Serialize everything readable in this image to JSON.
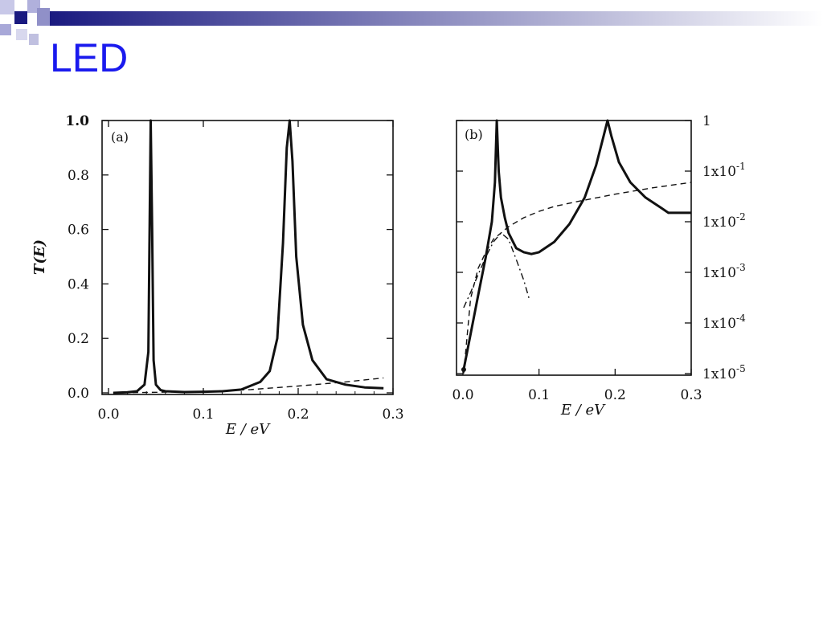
{
  "slide": {
    "title": "LED"
  },
  "chart_data": [
    {
      "type": "line",
      "panel_label": "(a)",
      "xlabel": "E / eV",
      "ylabel": "T(E)",
      "xlim": [
        0,
        0.3
      ],
      "ylim": [
        0,
        1
      ],
      "xticks": [
        "0.0",
        "0.1",
        "0.2",
        "0.3"
      ],
      "yticks": [
        "0.0",
        "0.2",
        "0.4",
        "0.6",
        "0.8",
        "1.0"
      ],
      "series": [
        {
          "style": "solid",
          "x": [
            0.005,
            0.02,
            0.03,
            0.038,
            0.042,
            0.0445,
            0.046,
            0.0475,
            0.05,
            0.055,
            0.06,
            0.08,
            0.1,
            0.12,
            0.14,
            0.16,
            0.17,
            0.178,
            0.184,
            0.188,
            0.191,
            0.194,
            0.198,
            0.205,
            0.215,
            0.23,
            0.25,
            0.27,
            0.29
          ],
          "y": [
            0.0,
            0.002,
            0.006,
            0.03,
            0.15,
            1.0,
            0.6,
            0.12,
            0.03,
            0.01,
            0.006,
            0.003,
            0.004,
            0.006,
            0.012,
            0.04,
            0.08,
            0.2,
            0.55,
            0.9,
            1.0,
            0.85,
            0.5,
            0.25,
            0.12,
            0.05,
            0.03,
            0.02,
            0.017
          ]
        },
        {
          "style": "dashed",
          "x": [
            0.005,
            0.05,
            0.1,
            0.15,
            0.2,
            0.25,
            0.29
          ],
          "y": [
            0.0,
            0.002,
            0.005,
            0.012,
            0.025,
            0.04,
            0.055
          ]
        }
      ],
      "grid": false,
      "legend": "none"
    },
    {
      "type": "line",
      "panel_label": "(b)",
      "xlabel": "E / eV",
      "xlim": [
        0,
        0.3
      ],
      "y_scale": "log",
      "ylim": [
        1e-05,
        1
      ],
      "xticks": [
        "0.0",
        "0.1",
        "0.2",
        "0.3"
      ],
      "yticks_right": [
        {
          "base": "1",
          "exp": ""
        },
        {
          "base": "1x10",
          "exp": "-1"
        },
        {
          "base": "1x10",
          "exp": "-2"
        },
        {
          "base": "1x10",
          "exp": "-3"
        },
        {
          "base": "1x10",
          "exp": "-4"
        },
        {
          "base": "1x10",
          "exp": "-5"
        }
      ],
      "series": [
        {
          "style": "solid",
          "x": [
            0.001,
            0.01,
            0.02,
            0.03,
            0.038,
            0.042,
            0.0445,
            0.047,
            0.05,
            0.055,
            0.06,
            0.07,
            0.08,
            0.09,
            0.1,
            0.12,
            0.14,
            0.16,
            0.175,
            0.185,
            0.19,
            0.195,
            0.205,
            0.22,
            0.24,
            0.26,
            0.27,
            0.3
          ],
          "y": [
            1.2e-05,
            6e-05,
            0.00035,
            0.002,
            0.01,
            0.06,
            1.0,
            0.1,
            0.03,
            0.012,
            0.006,
            0.003,
            0.0025,
            0.0023,
            0.0025,
            0.004,
            0.009,
            0.03,
            0.13,
            0.5,
            1.0,
            0.5,
            0.15,
            0.06,
            0.03,
            0.019,
            0.015,
            0.015
          ]
        },
        {
          "style": "dashed",
          "x": [
            0.001,
            0.01,
            0.02,
            0.03,
            0.04,
            0.06,
            0.08,
            0.1,
            0.12,
            0.15,
            0.2,
            0.25,
            0.3
          ],
          "y": [
            1e-05,
            0.0003,
            0.0012,
            0.0025,
            0.0045,
            0.008,
            0.012,
            0.016,
            0.02,
            0.025,
            0.035,
            0.047,
            0.06
          ]
        },
        {
          "style": "dashdot",
          "x": [
            0.001,
            0.01,
            0.02,
            0.03,
            0.04,
            0.05,
            0.06,
            0.07,
            0.08,
            0.087
          ],
          "y": [
            0.0002,
            0.0004,
            0.0009,
            0.002,
            0.004,
            0.006,
            0.0045,
            0.0018,
            0.0007,
            0.0003
          ]
        }
      ],
      "grid": false,
      "legend": "none"
    }
  ]
}
